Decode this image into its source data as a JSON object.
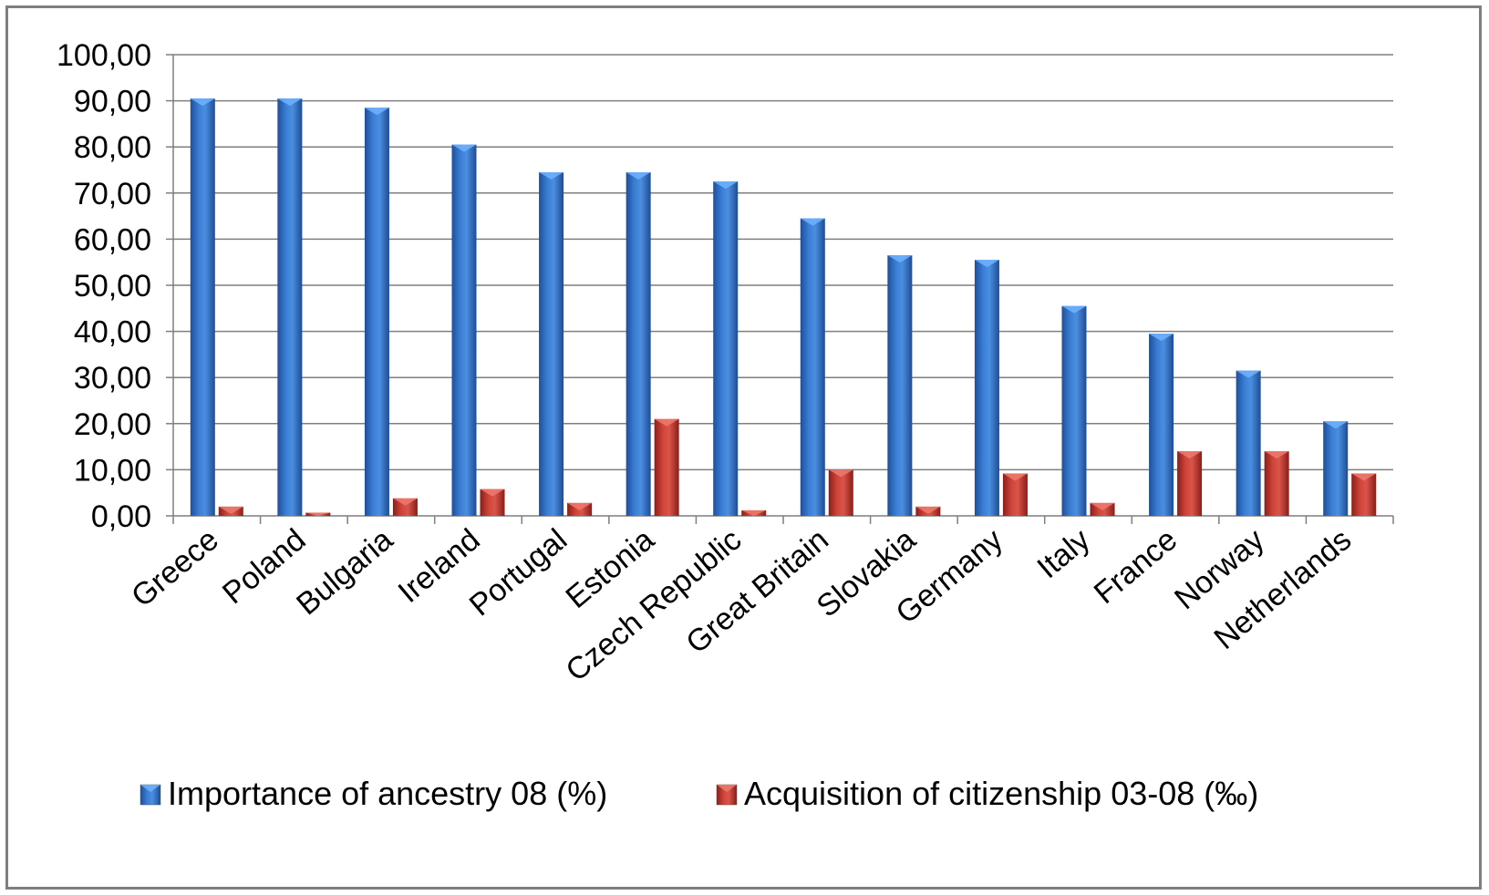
{
  "chart_data": {
    "type": "bar",
    "title": "",
    "xlabel": "",
    "ylabel": "",
    "ylim": [
      0,
      100
    ],
    "y_ticks": [
      "0,00",
      "10,00",
      "20,00",
      "30,00",
      "40,00",
      "50,00",
      "60,00",
      "70,00",
      "80,00",
      "90,00",
      "100,00"
    ],
    "grid": true,
    "legend_position": "bottom",
    "categories": [
      "Greece",
      "Poland",
      "Bulgaria",
      "Ireland",
      "Portugal",
      "Estonia",
      "Czech Republic",
      "Great Britain",
      "Slovakia",
      "Germany",
      "Italy",
      "France",
      "Norway",
      "Netherlands"
    ],
    "series": [
      {
        "name": "Importance of ancestry 08 (%)",
        "color": "#2e6fc4",
        "values": [
          90.5,
          90.5,
          88.5,
          80.5,
          74.5,
          74.5,
          72.5,
          64.5,
          56.5,
          55.5,
          45.5,
          39.5,
          31.5,
          20.5
        ]
      },
      {
        "name": "Acquisition of citizenship 03-08 (‰)",
        "color": "#c0392b",
        "values": [
          2.0,
          0.7,
          3.8,
          5.8,
          2.8,
          21.0,
          1.2,
          10.0,
          2.0,
          9.2,
          2.8,
          14.0,
          14.0,
          9.2
        ]
      }
    ]
  }
}
